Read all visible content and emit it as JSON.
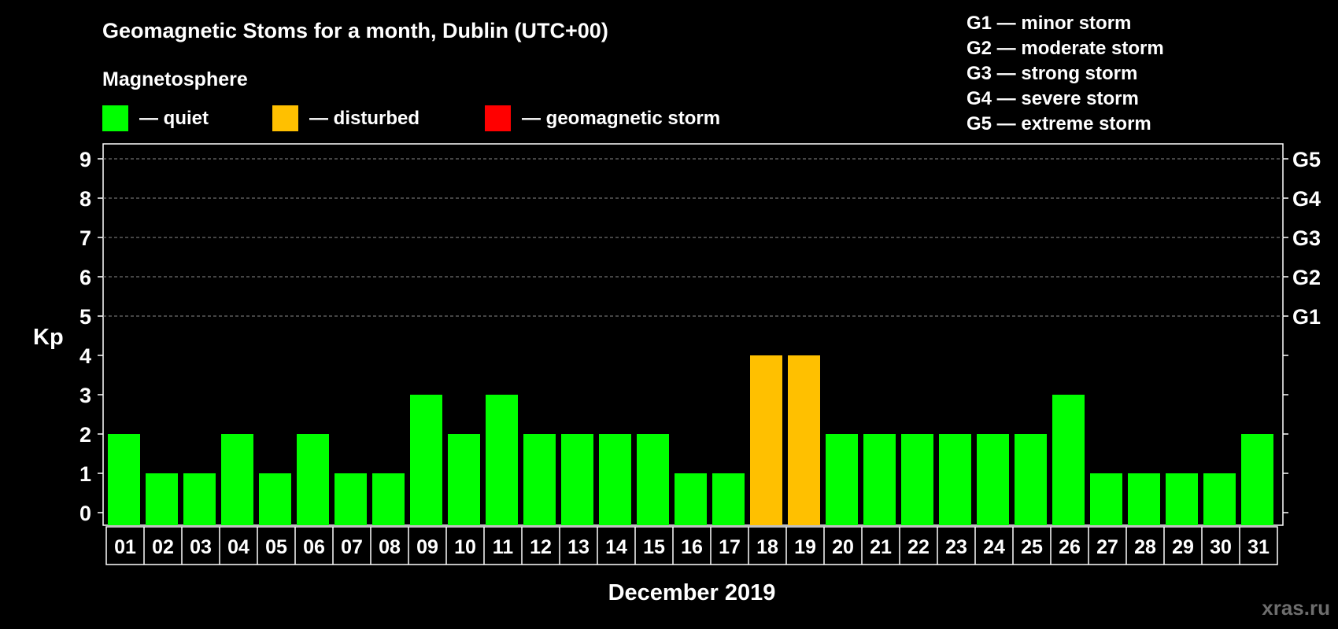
{
  "title": "Geomagnetic Stoms for a month, Dublin (UTC+00)",
  "legend": {
    "heading": "Magnetosphere",
    "items": [
      {
        "label": "— quiet",
        "color": "#00ff00"
      },
      {
        "label": "— disturbed",
        "color": "#ffc000"
      },
      {
        "label": "— geomagnetic storm",
        "color": "#ff0000"
      }
    ]
  },
  "storm_scale": [
    "G1 — minor storm",
    "G2 — moderate storm",
    "G3 — strong storm",
    "G4 — severe storm",
    "G5 — extreme storm"
  ],
  "watermark": "xras.ru",
  "chart_data": {
    "type": "bar",
    "xlabel": "December 2019",
    "ylabel": "Kp",
    "ylim": [
      0,
      9
    ],
    "yticks": [
      0,
      1,
      2,
      3,
      4,
      5,
      6,
      7,
      8,
      9
    ],
    "right_ticks": [
      {
        "value": 5,
        "label": "G1"
      },
      {
        "value": 6,
        "label": "G2"
      },
      {
        "value": 7,
        "label": "G3"
      },
      {
        "value": 8,
        "label": "G4"
      },
      {
        "value": 9,
        "label": "G5"
      }
    ],
    "grid": "dashed horizontal lines at Kp 5–9",
    "categories": [
      "01",
      "02",
      "03",
      "04",
      "05",
      "06",
      "07",
      "08",
      "09",
      "10",
      "11",
      "12",
      "13",
      "14",
      "15",
      "16",
      "17",
      "18",
      "19",
      "20",
      "21",
      "22",
      "23",
      "24",
      "25",
      "26",
      "27",
      "28",
      "29",
      "30",
      "31"
    ],
    "values": [
      2,
      1,
      1,
      2,
      1,
      2,
      1,
      1,
      3,
      2,
      3,
      2,
      2,
      2,
      2,
      1,
      1,
      4,
      4,
      2,
      2,
      2,
      2,
      2,
      2,
      3,
      1,
      1,
      1,
      1,
      2
    ],
    "status": [
      "quiet",
      "quiet",
      "quiet",
      "quiet",
      "quiet",
      "quiet",
      "quiet",
      "quiet",
      "quiet",
      "quiet",
      "quiet",
      "quiet",
      "quiet",
      "quiet",
      "quiet",
      "quiet",
      "quiet",
      "disturbed",
      "disturbed",
      "quiet",
      "quiet",
      "quiet",
      "quiet",
      "quiet",
      "quiet",
      "quiet",
      "quiet",
      "quiet",
      "quiet",
      "quiet",
      "quiet"
    ],
    "colors": {
      "quiet": "#00ff00",
      "disturbed": "#ffc000",
      "storm": "#ff0000"
    }
  }
}
